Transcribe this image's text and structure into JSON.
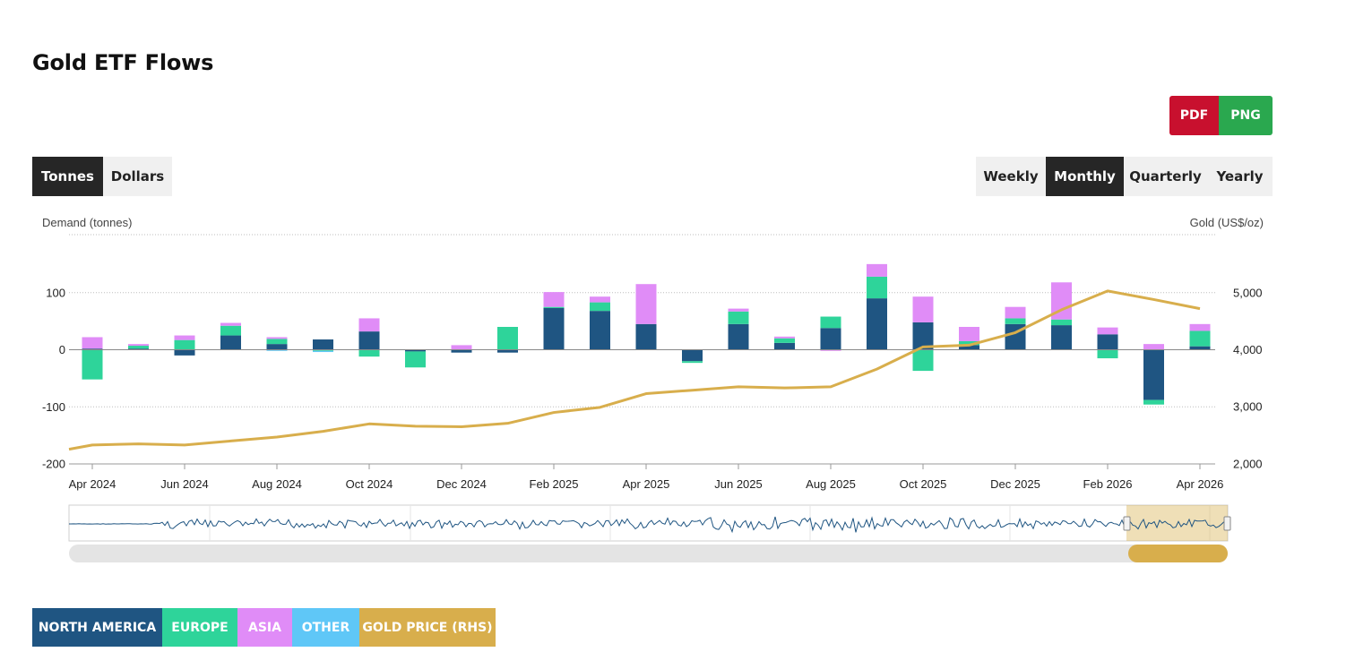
{
  "title": "Gold ETF Flows",
  "export": {
    "pdf_label": "PDF",
    "png_label": "PNG"
  },
  "unit_toggle": [
    {
      "label": "Tonnes",
      "active": true
    },
    {
      "label": "Dollars",
      "active": false
    }
  ],
  "period_toggle": [
    {
      "label": "Weekly",
      "active": false
    },
    {
      "label": "Monthly",
      "active": true
    },
    {
      "label": "Quarterly",
      "active": false
    },
    {
      "label": "Yearly",
      "active": false
    }
  ],
  "legend": [
    {
      "label": "NORTH AMERICA",
      "color": "#1f5582"
    },
    {
      "label": "EUROPE",
      "color": "#2ed49a"
    },
    {
      "label": "ASIA",
      "color": "#e08cf7"
    },
    {
      "label": "OTHER",
      "color": "#5fc7f7"
    },
    {
      "label": "GOLD PRICE (RHS)",
      "color": "#d8ae4c"
    }
  ],
  "chart_data": {
    "type": "bar",
    "stacked": true,
    "ylabel": "Demand (tonnes)",
    "y2label": "Gold (US$/oz)",
    "ylim": [
      -200,
      200
    ],
    "y_ticks": [
      100,
      0,
      -100,
      -200
    ],
    "y_tick_labels": [
      "100",
      "0",
      "-100",
      "-200"
    ],
    "y2lim": [
      2000,
      6000
    ],
    "y2_ticks": [
      5000,
      4000,
      3000,
      2000
    ],
    "y2_tick_labels": [
      "5,000",
      "4,000",
      "3,000",
      "2,000"
    ],
    "grid": true,
    "categories": [
      "Apr 2024",
      "May 2024",
      "Jun 2024",
      "Jul 2024",
      "Aug 2024",
      "Sep 2024",
      "Oct 2024",
      "Nov 2024",
      "Dec 2024",
      "Jan 2025",
      "Feb 2025",
      "Mar 2025",
      "Apr 2025",
      "May 2025",
      "Jun 2025",
      "Jul 2025",
      "Aug 2025",
      "Sep 2025",
      "Oct 2025",
      "Nov 2025",
      "Dec 2025",
      "Jan 2026",
      "Feb 2026",
      "Mar 2026",
      "Apr 2026"
    ],
    "x_tick_labels": [
      "Apr 2024",
      "Jun 2024",
      "Aug 2024",
      "Oct 2024",
      "Dec 2024",
      "Feb 2025",
      "Apr 2025",
      "Jun 2025",
      "Aug 2025",
      "Oct 2025",
      "Dec 2025",
      "Feb 2026",
      "Apr 2026"
    ],
    "series": [
      {
        "name": "NORTH AMERICA",
        "color": "#1f5582",
        "values": [
          2,
          2,
          -10,
          25,
          10,
          18,
          32,
          -3,
          -5,
          -5,
          73,
          68,
          45,
          -20,
          45,
          12,
          38,
          90,
          48,
          8,
          45,
          43,
          27,
          -88,
          6
        ]
      },
      {
        "name": "EUROPE",
        "color": "#2ed49a",
        "values": [
          -52,
          5,
          17,
          17,
          9,
          -2,
          -12,
          -28,
          0,
          40,
          2,
          15,
          0,
          -3,
          22,
          8,
          20,
          38,
          -37,
          7,
          10,
          10,
          -15,
          -8,
          27
        ]
      },
      {
        "name": "ASIA",
        "color": "#e08cf7",
        "values": [
          20,
          3,
          8,
          5,
          3,
          0,
          23,
          0,
          8,
          0,
          26,
          10,
          70,
          0,
          5,
          3,
          -2,
          22,
          45,
          25,
          20,
          65,
          12,
          10,
          12
        ]
      },
      {
        "name": "OTHER",
        "color": "#5fc7f7",
        "values": [
          0,
          0,
          0,
          0,
          -2,
          -2,
          0,
          0,
          0,
          0,
          0,
          0,
          0,
          0,
          0,
          0,
          0,
          0,
          0,
          0,
          0,
          0,
          0,
          0,
          0
        ]
      }
    ],
    "line": {
      "name": "GOLD PRICE (RHS)",
      "color": "#d8ae4c",
      "x": [
        "Apr 2024",
        "May 2024",
        "Jun 2024",
        "Jul 2024",
        "Aug 2024",
        "Sep 2024",
        "Oct 2024",
        "Nov 2024",
        "Dec 2024",
        "Jan 2025",
        "Feb 2025",
        "Mar 2025",
        "Apr 2025",
        "May 2025",
        "Jun 2025",
        "Jul 2025",
        "Aug 2025",
        "Sep 2025",
        "Oct 2025",
        "Nov 2025",
        "Dec 2025",
        "Jan 2026",
        "Feb 2026",
        "Mar 2026",
        "Apr 2026"
      ],
      "values": [
        2330,
        2350,
        2330,
        2400,
        2470,
        2570,
        2700,
        2660,
        2650,
        2710,
        2900,
        2990,
        3230,
        3290,
        3350,
        3330,
        3350,
        3660,
        4050,
        4080,
        4300,
        4700,
        5030,
        4880,
        4720
      ]
    }
  }
}
